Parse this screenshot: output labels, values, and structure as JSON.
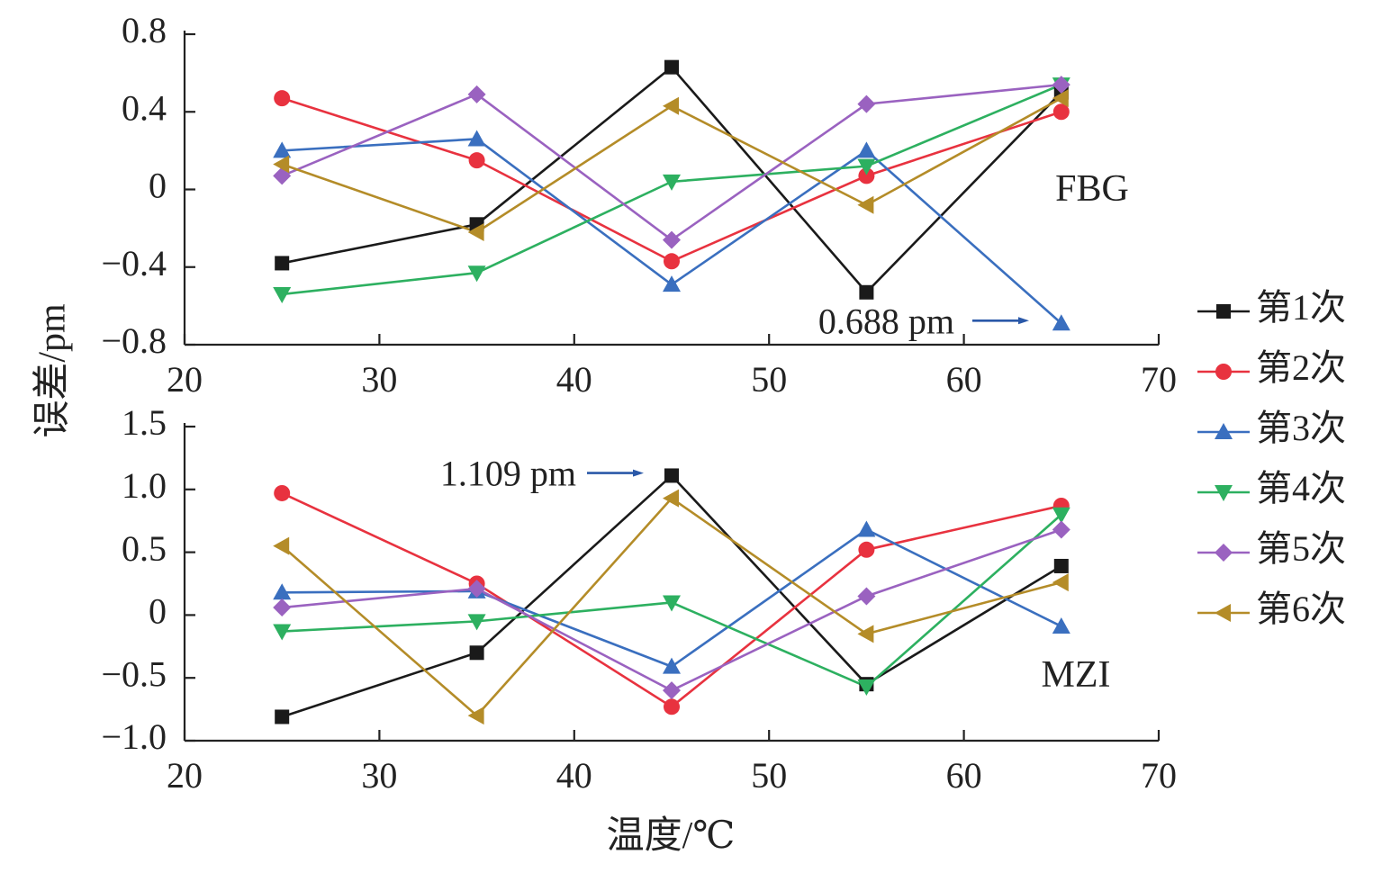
{
  "chart_data": [
    {
      "type": "line",
      "panel_label": "FBG",
      "ylabel": "误差/pm",
      "xlabel": "",
      "xlim": [
        20,
        70
      ],
      "ylim": [
        -0.8,
        0.8
      ],
      "x_ticks": [
        "20",
        "30",
        "40",
        "50",
        "60",
        "70"
      ],
      "y_ticks": [
        "0.8",
        "0.4",
        "0",
        "−0.4",
        "−0.8"
      ],
      "x": [
        25,
        35,
        45,
        55,
        65
      ],
      "series": [
        {
          "name": "第1次",
          "values": [
            -0.38,
            -0.18,
            0.63,
            -0.53,
            0.5
          ]
        },
        {
          "name": "第2次",
          "values": [
            0.47,
            0.15,
            -0.37,
            0.07,
            0.4
          ]
        },
        {
          "name": "第3次",
          "values": [
            0.2,
            0.26,
            -0.49,
            0.2,
            -0.69
          ]
        },
        {
          "name": "第4次",
          "values": [
            -0.54,
            -0.43,
            0.04,
            0.12,
            0.54
          ]
        },
        {
          "name": "第5次",
          "values": [
            0.07,
            0.49,
            -0.26,
            0.44,
            0.54
          ]
        },
        {
          "name": "第6次",
          "values": [
            0.13,
            -0.22,
            0.43,
            -0.08,
            0.47
          ]
        }
      ],
      "annotation": {
        "text": "0.688 pm",
        "target_x": 65,
        "target_y": -0.69
      }
    },
    {
      "type": "line",
      "panel_label": "MZI",
      "ylabel": "",
      "xlabel": "温度/℃",
      "xlim": [
        20,
        70
      ],
      "ylim": [
        -1.0,
        1.5
      ],
      "x_ticks": [
        "20",
        "30",
        "40",
        "50",
        "60",
        "70"
      ],
      "y_ticks": [
        "1.5",
        "1.0",
        "0.5",
        "0",
        "−0.5",
        "−1.0"
      ],
      "x": [
        25,
        35,
        45,
        55,
        65
      ],
      "series": [
        {
          "name": "第1次",
          "values": [
            -0.81,
            -0.3,
            1.11,
            -0.55,
            0.39
          ]
        },
        {
          "name": "第2次",
          "values": [
            0.97,
            0.25,
            -0.73,
            0.52,
            0.87
          ]
        },
        {
          "name": "第3次",
          "values": [
            0.18,
            0.19,
            -0.41,
            0.68,
            -0.09
          ]
        },
        {
          "name": "第4次",
          "values": [
            -0.13,
            -0.05,
            0.1,
            -0.57,
            0.8
          ]
        },
        {
          "name": "第5次",
          "values": [
            0.06,
            0.21,
            -0.6,
            0.15,
            0.68
          ]
        },
        {
          "name": "第6次",
          "values": [
            0.55,
            -0.8,
            0.93,
            -0.15,
            0.26
          ]
        }
      ],
      "annotation": {
        "text": "1.109 pm",
        "target_x": 45,
        "target_y": 1.109
      }
    }
  ],
  "legend": {
    "placement": "right",
    "items": [
      {
        "name": "第1次",
        "color": "#1a1a1a",
        "marker": "square"
      },
      {
        "name": "第2次",
        "color": "#e8323f",
        "marker": "circle"
      },
      {
        "name": "第3次",
        "color": "#3a6fbf",
        "marker": "triangle-up"
      },
      {
        "name": "第4次",
        "color": "#2db060",
        "marker": "triangle-down"
      },
      {
        "name": "第5次",
        "color": "#9a62c0",
        "marker": "diamond"
      },
      {
        "name": "第6次",
        "color": "#b48c28",
        "marker": "triangle-left"
      }
    ]
  }
}
